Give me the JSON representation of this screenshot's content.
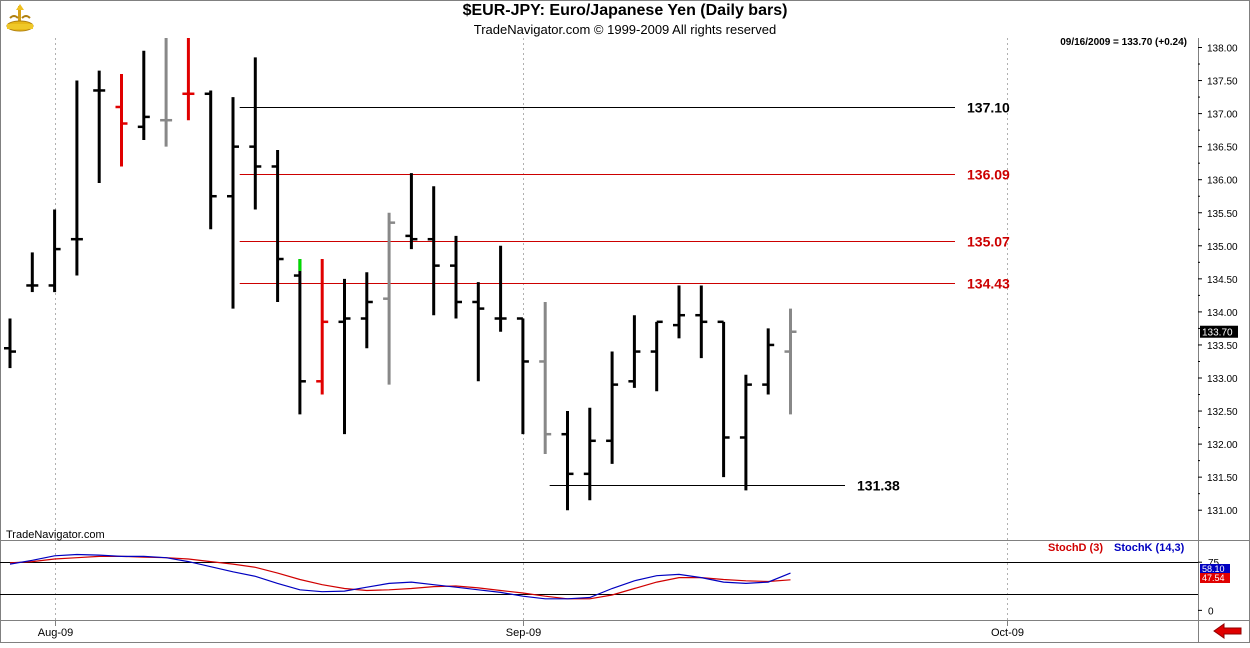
{
  "header": {
    "title": "$EUR-JPY:  Euro/Japanese Yen  (Daily bars)",
    "subtitle": "TradeNavigator.com © 1999-2009 All rights reserved",
    "last_info": "09/16/2009 = 133.70 (+0.24)",
    "watermark": "TradeNavigator.com"
  },
  "colors": {
    "up": "#000000",
    "down_red": "#e00000",
    "neutral": "#888888",
    "stoch_d": "#d00000",
    "stoch_k": "#0000c0",
    "level_black": "#000000",
    "level_red": "#cc0000"
  },
  "chart_data": [
    {
      "type": "ohlc",
      "title": "$EUR-JPY:  Euro/Japanese Yen  (Daily bars)",
      "ylim": [
        130.7,
        138.1
      ],
      "yticks": [
        131.0,
        131.5,
        132.0,
        132.5,
        133.0,
        133.5,
        134.0,
        134.5,
        135.0,
        135.5,
        136.0,
        136.5,
        137.0,
        137.5,
        138.0
      ],
      "ytick_labels": [
        "131.00",
        "131.50",
        "132.00",
        "132.50",
        "133.00",
        "133.50",
        "134.00",
        "134.50",
        "135.00",
        "135.50",
        "136.00",
        "136.50",
        "137.00",
        "137.50",
        "138.00"
      ],
      "x_labels": [
        {
          "label": "Aug-09",
          "index": 2
        },
        {
          "label": "Sep-09",
          "index": 23
        },
        {
          "label": "Oct-09",
          "index": 44.7
        }
      ],
      "last_price_label": "133.70",
      "bars": [
        {
          "o": 133.45,
          "h": 133.9,
          "l": 133.15,
          "c": 133.4,
          "color": "black"
        },
        {
          "o": 134.4,
          "h": 134.9,
          "l": 134.3,
          "c": 134.4,
          "color": "black"
        },
        {
          "o": 134.4,
          "h": 135.55,
          "l": 134.3,
          "c": 134.95,
          "color": "black"
        },
        {
          "o": 135.1,
          "h": 137.5,
          "l": 134.55,
          "c": 135.1,
          "color": "black"
        },
        {
          "o": 137.35,
          "h": 137.65,
          "l": 135.95,
          "c": 137.35,
          "color": "black"
        },
        {
          "o": 137.1,
          "h": 137.6,
          "l": 136.2,
          "c": 136.85,
          "color": "red"
        },
        {
          "o": 136.8,
          "h": 137.95,
          "l": 136.6,
          "c": 136.95,
          "color": "black"
        },
        {
          "o": 136.9,
          "h": 138.15,
          "l": 136.5,
          "c": 136.9,
          "color": "gray"
        },
        {
          "o": 137.3,
          "h": 138.15,
          "l": 136.9,
          "c": 137.3,
          "color": "red"
        },
        {
          "o": 137.3,
          "h": 137.35,
          "l": 135.25,
          "c": 135.75,
          "color": "black"
        },
        {
          "o": 135.75,
          "h": 137.25,
          "l": 134.05,
          "c": 136.5,
          "color": "black"
        },
        {
          "o": 136.5,
          "h": 137.85,
          "l": 135.55,
          "c": 136.2,
          "color": "black"
        },
        {
          "o": 136.2,
          "h": 136.45,
          "l": 134.15,
          "c": 134.8,
          "color": "black"
        },
        {
          "o": 134.55,
          "h": 134.8,
          "l": 132.45,
          "c": 132.95,
          "color": "green-red"
        },
        {
          "o": 132.95,
          "h": 134.8,
          "l": 132.75,
          "c": 133.85,
          "color": "red"
        },
        {
          "o": 133.85,
          "h": 134.5,
          "l": 132.15,
          "c": 133.9,
          "color": "black"
        },
        {
          "o": 133.9,
          "h": 134.6,
          "l": 133.45,
          "c": 134.15,
          "color": "black"
        },
        {
          "o": 134.2,
          "h": 135.5,
          "l": 132.9,
          "c": 135.35,
          "color": "gray"
        },
        {
          "o": 135.15,
          "h": 136.1,
          "l": 134.95,
          "c": 135.1,
          "color": "black"
        },
        {
          "o": 135.1,
          "h": 135.9,
          "l": 133.95,
          "c": 134.7,
          "color": "black"
        },
        {
          "o": 134.7,
          "h": 135.15,
          "l": 133.9,
          "c": 134.15,
          "color": "black"
        },
        {
          "o": 134.15,
          "h": 134.45,
          "l": 132.95,
          "c": 134.05,
          "color": "black"
        },
        {
          "o": 133.9,
          "h": 135.0,
          "l": 133.7,
          "c": 133.9,
          "color": "black"
        },
        {
          "o": 133.9,
          "h": 133.9,
          "l": 132.15,
          "c": 133.25,
          "color": "black"
        },
        {
          "o": 133.25,
          "h": 134.15,
          "l": 131.85,
          "c": 132.15,
          "color": "gray"
        },
        {
          "o": 132.15,
          "h": 132.5,
          "l": 131.0,
          "c": 131.55,
          "color": "black"
        },
        {
          "o": 131.55,
          "h": 132.55,
          "l": 131.15,
          "c": 132.05,
          "color": "black"
        },
        {
          "o": 132.05,
          "h": 133.4,
          "l": 131.7,
          "c": 132.9,
          "color": "black"
        },
        {
          "o": 132.95,
          "h": 133.95,
          "l": 132.85,
          "c": 133.4,
          "color": "black"
        },
        {
          "o": 133.4,
          "h": 133.85,
          "l": 132.8,
          "c": 133.85,
          "color": "black"
        },
        {
          "o": 133.8,
          "h": 134.4,
          "l": 133.6,
          "c": 133.95,
          "color": "black"
        },
        {
          "o": 133.95,
          "h": 134.4,
          "l": 133.3,
          "c": 133.85,
          "color": "black"
        },
        {
          "o": 133.85,
          "h": 133.85,
          "l": 131.5,
          "c": 132.1,
          "color": "black"
        },
        {
          "o": 132.1,
          "h": 133.05,
          "l": 131.3,
          "c": 132.9,
          "color": "black"
        },
        {
          "o": 132.9,
          "h": 133.75,
          "l": 132.75,
          "c": 133.5,
          "color": "black"
        },
        {
          "o": 133.4,
          "h": 134.05,
          "l": 132.45,
          "c": 133.7,
          "color": "gray"
        }
      ],
      "levels": [
        {
          "value": 137.1,
          "label": "137.10",
          "color": "black"
        },
        {
          "value": 136.09,
          "label": "136.09",
          "color": "red"
        },
        {
          "value": 135.07,
          "label": "135.07",
          "color": "red"
        },
        {
          "value": 134.43,
          "label": "134.43",
          "color": "red"
        },
        {
          "value": 131.38,
          "label": "131.38",
          "color": "black"
        }
      ]
    },
    {
      "type": "line",
      "ylim": [
        -15,
        108
      ],
      "reference_lines": [
        75,
        25
      ],
      "ytick_labels": [
        {
          "value": 75,
          "label": "75"
        },
        {
          "value": 0,
          "label": "0"
        }
      ],
      "series": [
        {
          "name": "StochD (3)",
          "color": "red",
          "values": [
            74,
            76,
            80,
            82,
            84,
            84,
            83,
            82,
            80,
            76,
            72,
            67,
            58,
            48,
            40,
            34,
            31,
            32,
            34,
            37,
            38,
            35,
            31,
            27,
            22,
            18,
            18,
            24,
            34,
            44,
            51,
            51,
            48,
            46,
            45,
            47.54
          ]
        },
        {
          "name": "StochK (14,3)",
          "color": "blue",
          "values": [
            72,
            78,
            85,
            87,
            86,
            84,
            84,
            82,
            76,
            68,
            60,
            53,
            42,
            32,
            29,
            30,
            36,
            42,
            44,
            40,
            36,
            32,
            28,
            22,
            18,
            18,
            20,
            34,
            46,
            54,
            56,
            51,
            44,
            42,
            44,
            58
          ]
        }
      ],
      "last_labels": [
        {
          "label": "58.10",
          "color": "blue"
        },
        {
          "label": "47.54",
          "color": "red"
        }
      ]
    }
  ],
  "footer": {
    "nav_arrow": "left-arrow-icon"
  }
}
